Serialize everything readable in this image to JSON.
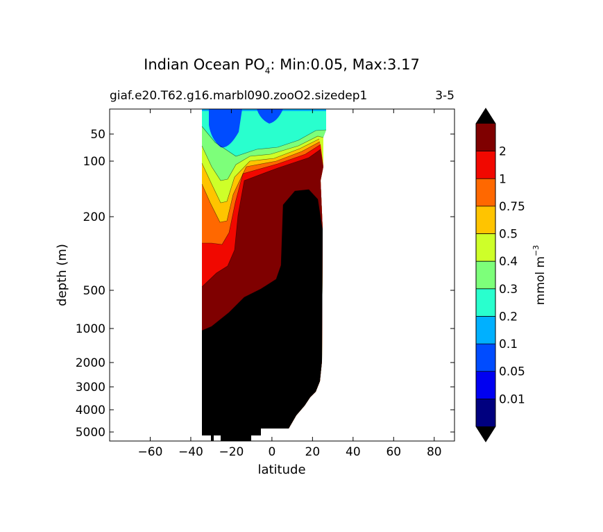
{
  "chart_data": {
    "type": "heatmap",
    "title_main": "Indian Ocean PO",
    "title_sub_text": "4",
    "title_stats": ": Min:0.05, Max:3.17",
    "subtitle_left": "giaf.e20.T62.g16.marbl090.zooO2.sizedep1",
    "subtitle_right": "3-5",
    "xlabel": "latitude",
    "ylabel": "depth (m)",
    "xlim": [
      -80,
      90
    ],
    "x_ticks": [
      -60,
      -40,
      -20,
      0,
      20,
      40,
      60,
      80
    ],
    "x_tick_labels": [
      "−60",
      "−40",
      "−20",
      "0",
      "20",
      "40",
      "60",
      "80"
    ],
    "y_ticks": [
      50,
      100,
      200,
      500,
      1000,
      2000,
      3000,
      4000,
      5000
    ],
    "y_tick_labels": [
      "50",
      "100",
      "200",
      "500",
      "1000",
      "2000",
      "3000",
      "4000",
      "5000"
    ],
    "y_axis": "depth, increasing downward, nonlinear",
    "data_extent_latitude": [
      -34,
      25
    ],
    "colorbar": {
      "label": "mmol m",
      "label_sup": "−3",
      "levels": [
        "0.01",
        "0.05",
        "0.1",
        "0.2",
        "0.3",
        "0.4",
        "0.5",
        "0.75",
        "1",
        "2"
      ],
      "colors": [
        "#00007f",
        "#0000f1",
        "#004cff",
        "#00b0ff",
        "#29ffce",
        "#7dff7a",
        "#ceff29",
        "#ffc400",
        "#ff6800",
        "#f10800",
        "#7f0000"
      ],
      "extend_under_color": "#000000",
      "extend_over_color": "#000000"
    },
    "bands": [
      {
        "level": "0.05–0.1",
        "color": "#004cff"
      },
      {
        "level": "0.1–0.2",
        "color": "#00b0ff"
      },
      {
        "level": "0.2–0.3",
        "color": "#29ffce"
      },
      {
        "level": "0.3–0.4",
        "color": "#7dff7a"
      },
      {
        "level": "0.4–0.5",
        "color": "#ceff29"
      },
      {
        "level": "0.5–0.75",
        "color": "#ffc400"
      },
      {
        "level": "0.75–1",
        "color": "#ff6800"
      },
      {
        "level": "1–2",
        "color": "#f10800"
      },
      {
        "level": ">2",
        "color": "#7f0000"
      },
      {
        "level": ">3.17 (over)",
        "color": "#000000"
      }
    ]
  }
}
